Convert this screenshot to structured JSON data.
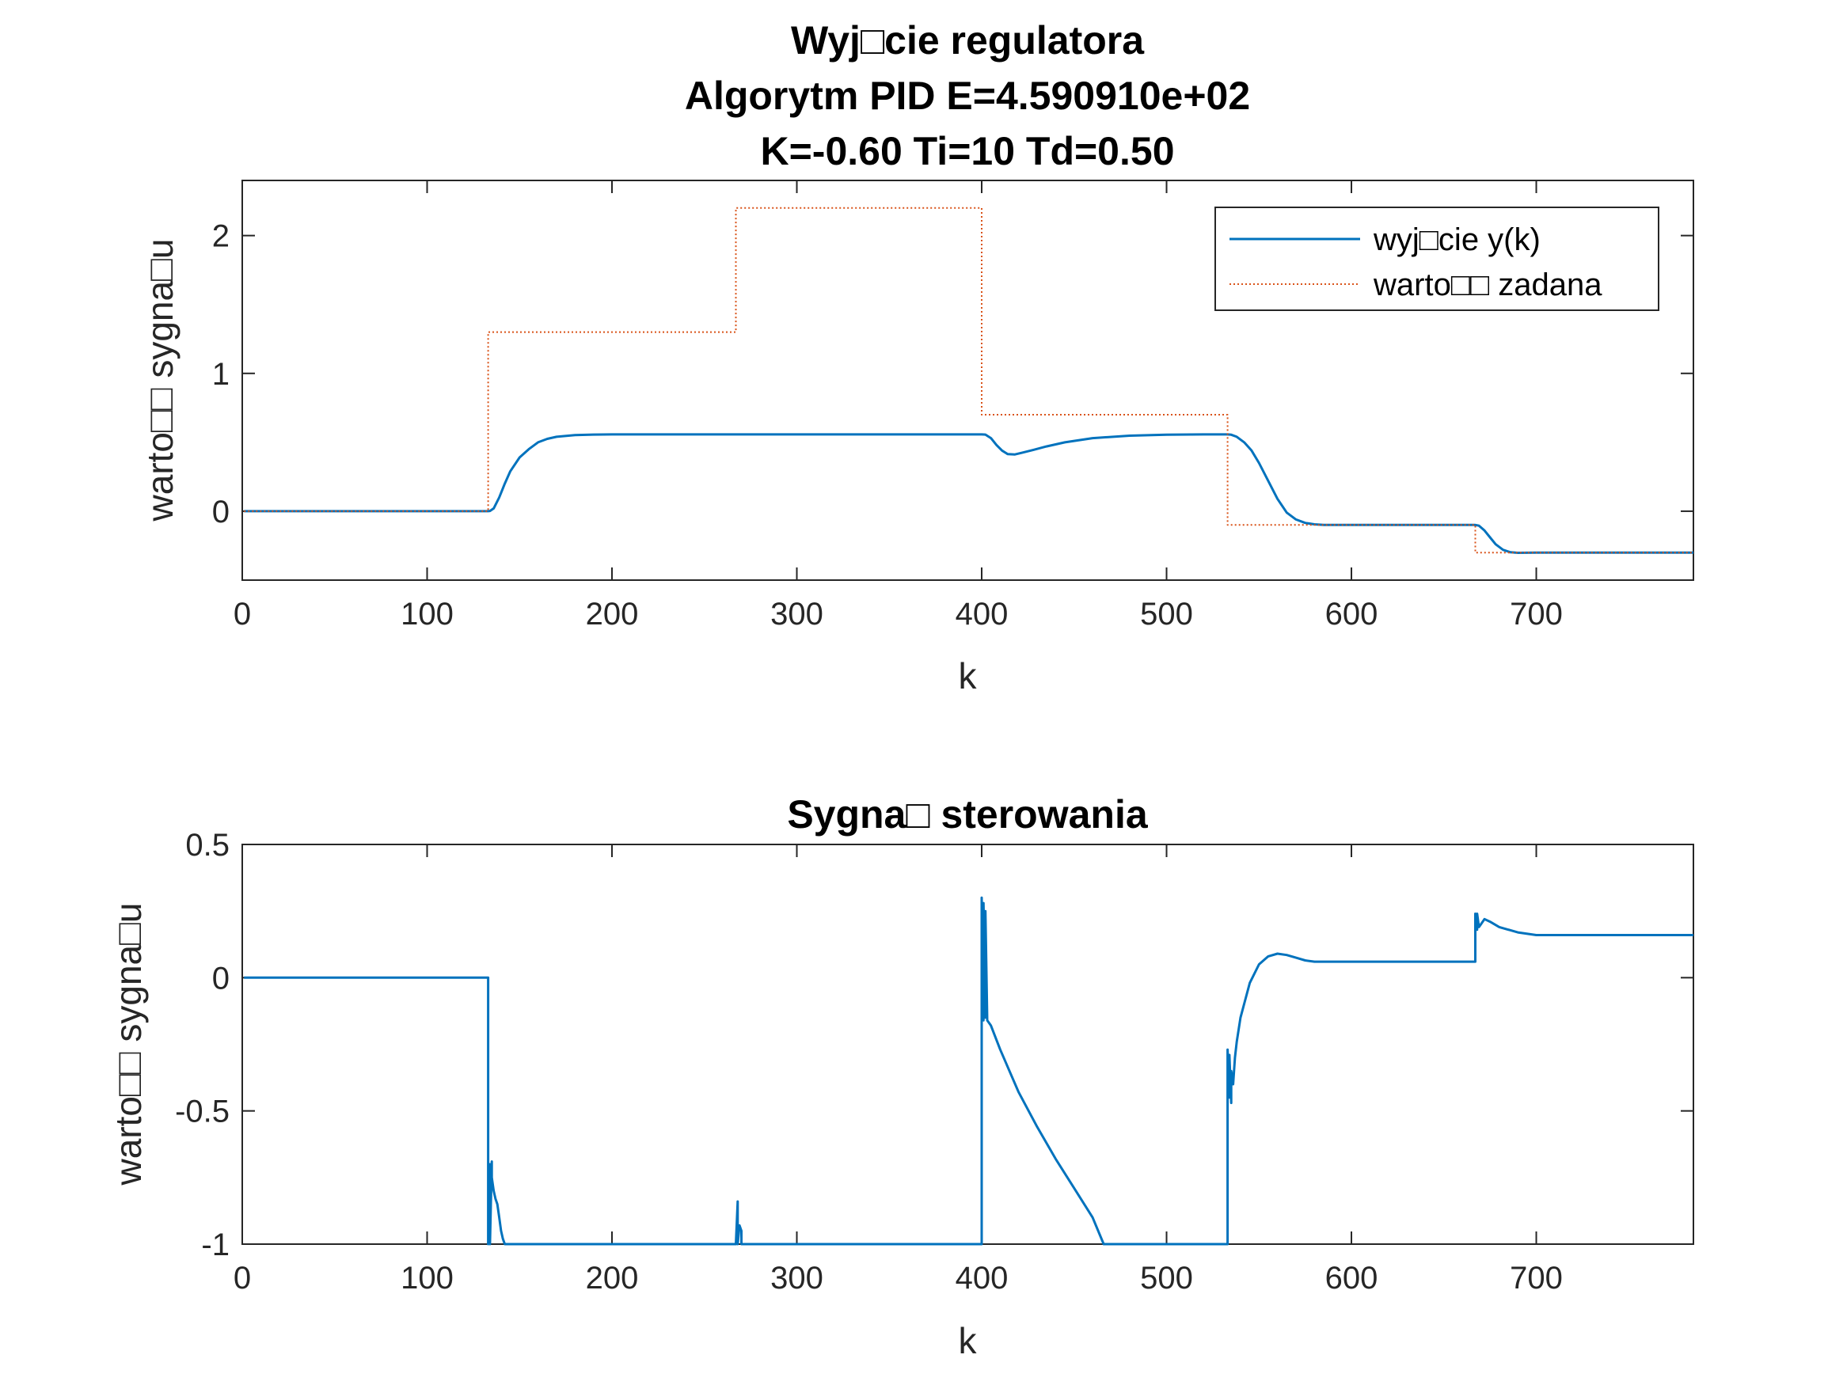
{
  "chart_data": [
    {
      "type": "line",
      "title": [
        "Wyj□cie regulatora",
        "Algorytm PID    E=4.590910e+02",
        "K=-0.60  Ti=10  Td=0.50"
      ],
      "xlabel": "k",
      "ylabel": "warto□□ sygna□u",
      "xlim": [
        0,
        785
      ],
      "ylim": [
        -0.5,
        2.4
      ],
      "xticks": [
        0,
        100,
        200,
        300,
        400,
        500,
        600,
        700
      ],
      "yticks": [
        0,
        1,
        2
      ],
      "grid": false,
      "legend": {
        "placement": "top-right"
      },
      "series": [
        {
          "name": "wyj□cie y(k)",
          "color": "#0072BD",
          "style": "solid",
          "x": [
            1,
            133,
            134,
            136,
            139,
            142,
            145,
            150,
            155,
            160,
            165,
            170,
            180,
            190,
            200,
            250,
            300,
            350,
            400,
            402,
            405,
            408,
            411,
            414,
            418,
            422,
            428,
            435,
            445,
            460,
            480,
            500,
            520,
            533,
            535,
            538,
            542,
            546,
            550,
            555,
            560,
            565,
            570,
            575,
            580,
            585,
            590,
            600,
            620,
            650,
            667,
            669,
            672,
            675,
            678,
            682,
            686,
            690,
            700,
            720,
            785
          ],
          "y": [
            0,
            0,
            0.002,
            0.02,
            0.1,
            0.2,
            0.29,
            0.39,
            0.45,
            0.5,
            0.525,
            0.54,
            0.552,
            0.556,
            0.557,
            0.557,
            0.557,
            0.557,
            0.557,
            0.556,
            0.53,
            0.48,
            0.44,
            0.415,
            0.412,
            0.425,
            0.445,
            0.47,
            0.5,
            0.53,
            0.548,
            0.555,
            0.557,
            0.557,
            0.555,
            0.54,
            0.5,
            0.44,
            0.35,
            0.22,
            0.09,
            -0.01,
            -0.06,
            -0.085,
            -0.095,
            -0.099,
            -0.1,
            -0.1,
            -0.1,
            -0.1,
            -0.1,
            -0.105,
            -0.14,
            -0.19,
            -0.24,
            -0.28,
            -0.298,
            -0.302,
            -0.3,
            -0.3,
            -0.3
          ]
        },
        {
          "name": "warto□□ zadana",
          "color": "#D95319",
          "style": "dotted",
          "x": [
            1,
            133,
            133,
            267,
            267,
            400,
            400,
            533,
            533,
            667,
            667,
            785
          ],
          "y": [
            0,
            0,
            1.3,
            1.3,
            2.2,
            2.2,
            0.7,
            0.7,
            -0.1,
            -0.1,
            -0.3,
            -0.3
          ]
        }
      ]
    },
    {
      "type": "line",
      "title": [
        "Sygna□ sterowania"
      ],
      "xlabel": "k",
      "ylabel": "warto□□ sygna□u",
      "xlim": [
        0,
        785
      ],
      "ylim": [
        -1,
        0.5
      ],
      "xticks": [
        0,
        100,
        200,
        300,
        400,
        500,
        600,
        700
      ],
      "yticks": [
        -1,
        -0.5,
        0,
        0.5
      ],
      "grid": false,
      "series": [
        {
          "name": "",
          "color": "#0072BD",
          "style": "solid",
          "x": [
            1,
            132,
            133,
            133,
            134,
            134,
            135,
            135,
            136,
            137,
            138,
            139,
            140,
            141,
            142,
            142,
            267,
            268,
            268,
            269,
            270,
            270,
            271,
            271,
            400,
            400,
            401,
            401,
            402,
            402,
            403,
            404,
            405,
            410,
            420,
            430,
            440,
            450,
            460,
            466,
            533,
            533,
            534,
            534,
            535,
            535,
            536,
            537,
            538,
            540,
            545,
            550,
            555,
            560,
            565,
            570,
            575,
            580,
            600,
            620,
            640,
            667,
            667,
            668,
            668,
            669,
            670,
            672,
            675,
            680,
            690,
            700,
            720,
            785
          ],
          "y": [
            0,
            0,
            0,
            -1,
            -0.7,
            -1,
            -0.69,
            -0.75,
            -0.8,
            -0.83,
            -0.85,
            -0.9,
            -0.95,
            -0.98,
            -1,
            -1,
            -1,
            -0.84,
            -1,
            -0.93,
            -0.95,
            -1,
            -1,
            -1,
            -1,
            0.3,
            -0.16,
            0.28,
            -0.15,
            0.25,
            -0.16,
            -0.17,
            -0.18,
            -0.27,
            -0.43,
            -0.56,
            -0.68,
            -0.79,
            -0.9,
            -1,
            -1,
            -0.27,
            -0.45,
            -0.29,
            -0.47,
            -0.35,
            -0.4,
            -0.3,
            -0.24,
            -0.15,
            -0.02,
            0.05,
            0.08,
            0.09,
            0.085,
            0.075,
            0.065,
            0.06,
            0.06,
            0.06,
            0.06,
            0.06,
            0.24,
            0.18,
            0.24,
            0.19,
            0.2,
            0.22,
            0.21,
            0.19,
            0.17,
            0.16,
            0.16,
            0.16
          ]
        }
      ]
    }
  ]
}
